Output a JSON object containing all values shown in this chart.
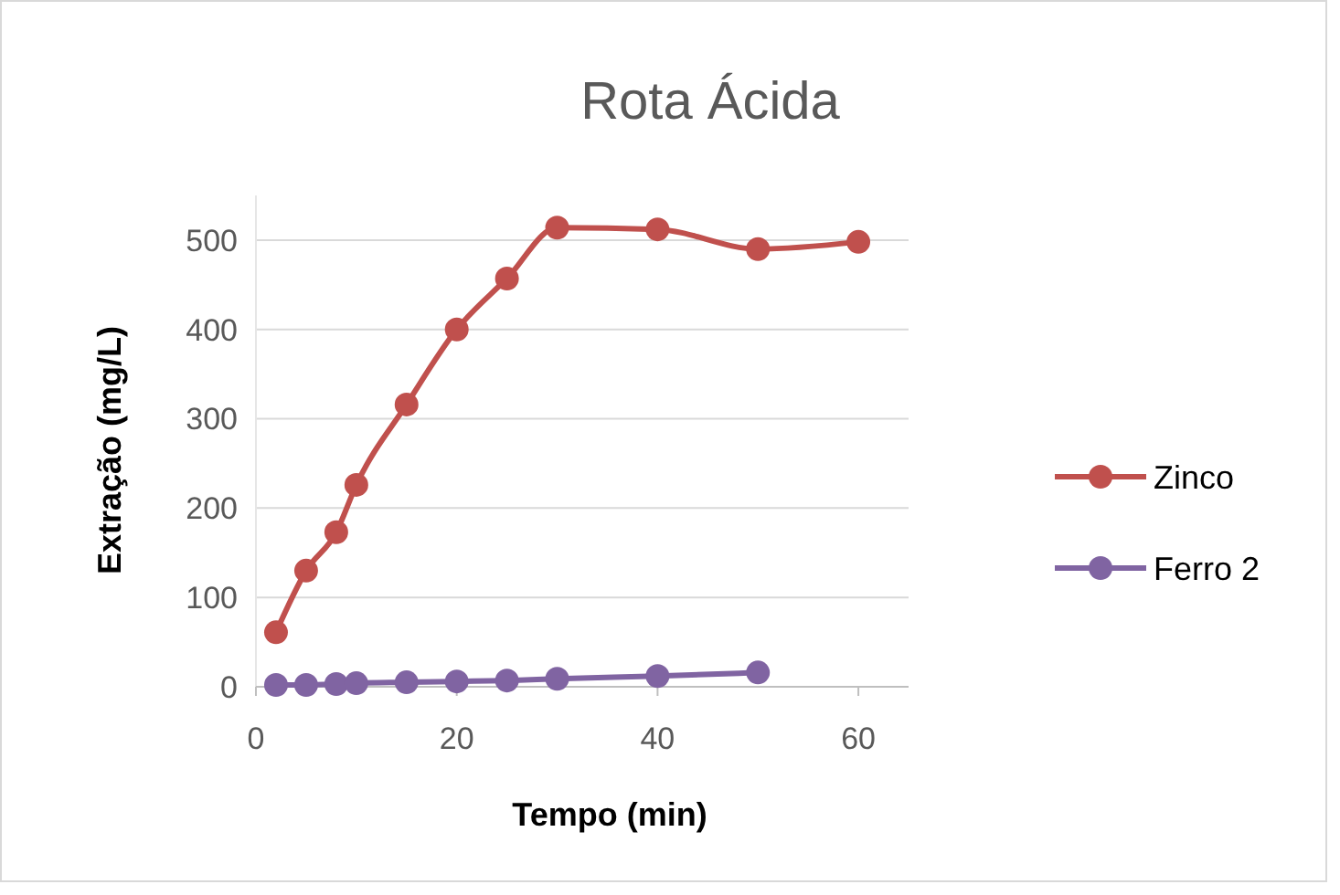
{
  "chart_data": {
    "type": "line",
    "title": "Rota Ácida",
    "xlabel": "Tempo (min)",
    "ylabel": "Extração (mg/L)",
    "x": [
      2,
      5,
      8,
      10,
      15,
      20,
      25,
      30,
      40,
      50,
      60
    ],
    "series": [
      {
        "name": "Zinco",
        "color": "#c0504d",
        "values": [
          61,
          130,
          173,
          226,
          316,
          400,
          457,
          514,
          512,
          490,
          498
        ]
      },
      {
        "name": "Ferro 2",
        "color": "#8064a2",
        "x": [
          2,
          5,
          8,
          10,
          15,
          20,
          25,
          30,
          40,
          50
        ],
        "values": [
          2,
          2,
          3,
          4,
          5,
          6,
          7,
          9,
          12,
          16
        ]
      }
    ],
    "xlim": [
      0,
      65
    ],
    "xticks": [
      0,
      20,
      40,
      60
    ],
    "ylim": [
      0,
      550
    ],
    "yticks": [
      0,
      100,
      200,
      300,
      400,
      500
    ],
    "grid": "y",
    "legend": "right",
    "marker": "circle",
    "line_style": "solid"
  }
}
